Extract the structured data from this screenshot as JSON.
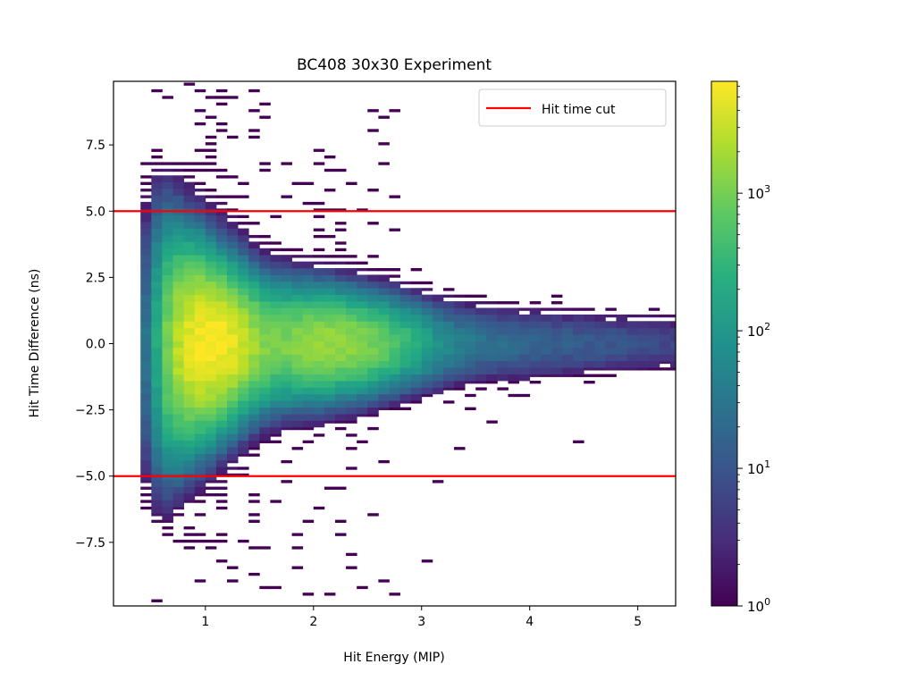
{
  "chart_data": {
    "type": "heatmap",
    "title": "BC408 30x30 Experiment",
    "xlabel": "Hit Energy (MIP)",
    "ylabel": "Hit Time Difference (ns)",
    "xlim": [
      0.15,
      5.35
    ],
    "ylim": [
      -9.9,
      9.9
    ],
    "x_ticks": [
      1,
      2,
      3,
      4,
      5
    ],
    "x_tick_labels": [
      "1",
      "2",
      "3",
      "4",
      "5"
    ],
    "y_ticks": [
      7.5,
      5.0,
      2.5,
      0.0,
      -2.5,
      -5.0,
      -7.5
    ],
    "y_tick_labels": [
      "7.5",
      "5.0",
      "2.5",
      "0.0",
      "−2.5",
      "−5.0",
      "−7.5"
    ],
    "cut_lines": [
      5.0,
      -5.0
    ],
    "cut_color": "#ff0000",
    "legend": {
      "label": "Hit time cut",
      "position": "top-right"
    },
    "colorbar": {
      "scale": "log",
      "range": [
        1,
        6500
      ],
      "colormap": "viridis",
      "ticks": [
        1,
        10,
        100,
        1000
      ],
      "tick_bases": [
        "10",
        "10",
        "10",
        "10"
      ],
      "tick_exponents": [
        "0",
        "1",
        "2",
        "3"
      ]
    },
    "density_model": {
      "peak_count": 6500,
      "peak_energy": 1.05,
      "secondary_energy": 2.15,
      "secondary_ratio": 0.25,
      "time_sigma_at_1mip": 1.3,
      "time_sigma_at_5mip": 0.38,
      "note": "approximate 2D distribution of hits: dense core near 1 MIP, 0 ns, narrowing with energy"
    }
  }
}
